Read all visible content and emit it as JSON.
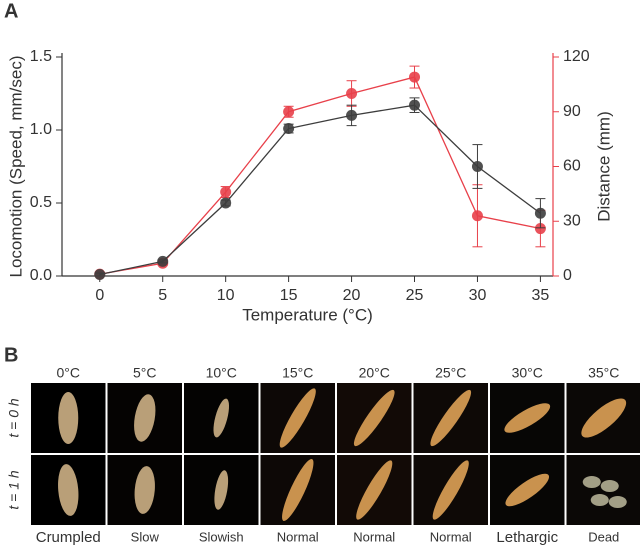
{
  "panel_labels": [
    "A",
    "B"
  ],
  "chart_data": {
    "type": "line",
    "x": [
      0,
      5,
      10,
      15,
      20,
      25,
      30,
      35
    ],
    "xlabel": "Temperature (°C)",
    "ylabel": "Locomotion (Speed, mm/sec)",
    "y2label": "Distance (mm)",
    "xlim": [
      -3,
      36
    ],
    "xticks": [
      0,
      5,
      10,
      15,
      20,
      25,
      30,
      35
    ],
    "ylim": [
      0,
      1.5
    ],
    "yticks": [
      {
        "value": 0,
        "label": "0.0"
      },
      0.5,
      {
        "value": 1,
        "label": "1.0"
      },
      1.5
    ],
    "y2lim": [
      0,
      120
    ],
    "y2ticks": [
      0,
      30,
      60,
      90,
      120
    ],
    "y2color": "#e8404a",
    "series": [
      {
        "name": "Speed",
        "color": "#3d3d3d",
        "values": [
          0.01,
          0.1,
          0.5,
          1.01,
          1.1,
          1.17,
          0.75,
          0.43
        ],
        "errors": [
          0.01,
          0.01,
          0.02,
          0.03,
          0.07,
          0.05,
          0.15,
          0.1
        ]
      },
      {
        "name": "Distance",
        "color": "#e8404a",
        "axis": "y2",
        "values": [
          1,
          7,
          46,
          90,
          100,
          109,
          33,
          26
        ],
        "errors": [
          1,
          1,
          3,
          3,
          7,
          6,
          17,
          10
        ]
      }
    ]
  },
  "image_grid": {
    "columns": [
      "0°C",
      "5°C",
      "10°C",
      "15°C",
      "20°C",
      "25°C",
      "30°C",
      "35°C"
    ],
    "rows": [
      "t = 0 h",
      "t = 1 h"
    ],
    "behaviors": [
      "Crumpled",
      "Slow",
      "Slowish",
      "Normal",
      "Normal",
      "Normal",
      "Lethargic",
      "Dead"
    ]
  }
}
